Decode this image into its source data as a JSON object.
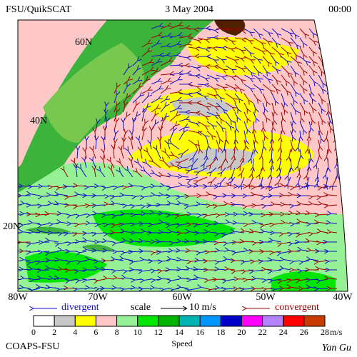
{
  "header": {
    "title": "FSU/QuikSCAT",
    "date": "3 May 2004",
    "time": "00:00"
  },
  "map": {
    "lat_labels": [
      "60N",
      "40N",
      "20N"
    ],
    "lon_labels": [
      "80W",
      "70W",
      "60W",
      "50W",
      "40W"
    ]
  },
  "legend": {
    "divergent": "divergent",
    "scale": "scale",
    "scale_value": "10 m/s",
    "convergent": "convergent"
  },
  "colorbar": {
    "ticks": [
      0,
      2,
      4,
      6,
      8,
      10,
      12,
      14,
      16,
      18,
      20,
      22,
      24,
      26,
      28
    ],
    "colors": [
      "#ffffff",
      "#c8c8c8",
      "#ffff00",
      "#ffc8c8",
      "#96f096",
      "#00e600",
      "#00b400",
      "#00b4b4",
      "#0096ff",
      "#0000c8",
      "#ff00ff",
      "#b482ff",
      "#ff0000",
      "#c83c00",
      "#000000"
    ],
    "unit": "m/s",
    "label": "Speed"
  },
  "footer": {
    "credit": "COAPS-FSU",
    "author": "Yan Gu"
  }
}
